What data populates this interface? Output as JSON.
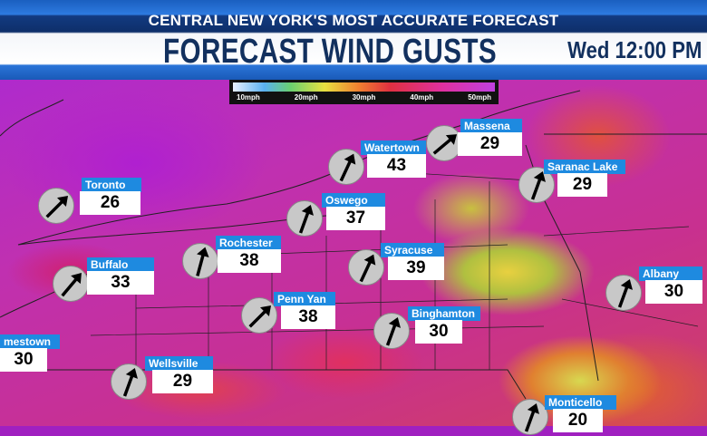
{
  "header": {
    "tagline": "CENTRAL NEW YORK'S MOST ACCURATE FORECAST",
    "title": "FORECAST WIND GUSTS",
    "time": "Wed 12:00 PM"
  },
  "legend": {
    "ticks": [
      "10mph",
      "20mph",
      "30mph",
      "40mph",
      "50mph"
    ]
  },
  "colors": {
    "label_bg": "#1e8ae0",
    "title": "#12305e",
    "high_gust": "#c040e0"
  },
  "stations": [
    {
      "name": "Toronto",
      "gust": "26",
      "arrow": "wind-arrow-northeast"
    },
    {
      "name": "Buffalo",
      "gust": "33",
      "arrow": "wind-arrow-northeast"
    },
    {
      "name": "Rochester",
      "gust": "38",
      "arrow": "wind-arrow-north-northeast"
    },
    {
      "name": "Oswego",
      "gust": "37",
      "arrow": "wind-arrow-north-northeast"
    },
    {
      "name": "Watertown",
      "gust": "43",
      "arrow": "wind-arrow-north-northeast"
    },
    {
      "name": "Massena",
      "gust": "29",
      "arrow": "wind-arrow-northeast"
    },
    {
      "name": "Saranac Lake",
      "gust": "29",
      "arrow": "wind-arrow-north-northeast"
    },
    {
      "name": "Syracuse",
      "gust": "39",
      "arrow": "wind-arrow-north-northeast"
    },
    {
      "name": "Albany",
      "gust": "30",
      "arrow": "wind-arrow-north-northeast"
    },
    {
      "name": "Penn Yan",
      "gust": "38",
      "arrow": "wind-arrow-northeast"
    },
    {
      "name": "Binghamton",
      "gust": "30",
      "arrow": "wind-arrow-north-northeast"
    },
    {
      "name": "mestown",
      "gust": "30",
      "arrow": ""
    },
    {
      "name": "Wellsville",
      "gust": "29",
      "arrow": "wind-arrow-north-northeast"
    },
    {
      "name": "Monticello",
      "gust": "20",
      "arrow": "wind-arrow-north-northeast"
    }
  ]
}
